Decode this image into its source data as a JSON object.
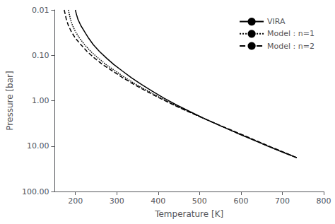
{
  "chart_data": {
    "type": "line",
    "xlabel": "Temperature [K]",
    "ylabel": "Pressure [bar]",
    "log": "y",
    "grid": false,
    "legend": "upper right",
    "xlim": [
      150,
      800
    ],
    "ylim": [
      100.0,
      0.01
    ],
    "xticks": [
      200,
      300,
      400,
      500,
      600,
      700,
      800
    ],
    "yticks": [
      0.01,
      {
        "value": 0.1,
        "label": "0.10"
      },
      {
        "value": 1.0,
        "label": "1.00"
      },
      {
        "value": 10.0,
        "label": "10.00"
      },
      {
        "value": 100.0,
        "label": "100.00"
      }
    ],
    "series": [
      {
        "name": "VIRA",
        "color": "#000000",
        "line_style": "solid",
        "x": [
          200,
          202,
          206,
          213,
          222,
          232,
          243,
          258,
          275,
          293,
          313,
          335,
          360,
          386,
          414,
          445,
          478,
          513,
          550,
          588,
          628,
          668,
          710,
          735
        ],
        "values": [
          0.01,
          0.012,
          0.016,
          0.022,
          0.03,
          0.042,
          0.058,
          0.082,
          0.115,
          0.16,
          0.22,
          0.31,
          0.44,
          0.62,
          0.88,
          1.25,
          1.76,
          2.5,
          3.55,
          5.05,
          7.2,
          10.3,
          14.7,
          18.0
        ]
      },
      {
        "name": "Model : n=1",
        "color": "#000000",
        "line_style": "dotted",
        "x": [
          183,
          185,
          188,
          193,
          200,
          210,
          222,
          237,
          255,
          274,
          296,
          320,
          347,
          376,
          407,
          440,
          475,
          512,
          550,
          589,
          629,
          669,
          711,
          735
        ],
        "values": [
          0.01,
          0.012,
          0.016,
          0.022,
          0.03,
          0.042,
          0.058,
          0.082,
          0.115,
          0.16,
          0.22,
          0.31,
          0.44,
          0.62,
          0.88,
          1.25,
          1.76,
          2.5,
          3.55,
          5.05,
          7.2,
          10.3,
          14.7,
          18.0
        ]
      },
      {
        "name": "Model : n=2",
        "color": "#000000",
        "line_style": "dashed",
        "x": [
          173,
          175,
          178,
          183,
          190,
          200,
          213,
          228,
          246,
          266,
          289,
          314,
          342,
          372,
          404,
          438,
          474,
          512,
          551,
          591,
          631,
          671,
          712,
          735
        ],
        "values": [
          0.01,
          0.012,
          0.016,
          0.022,
          0.03,
          0.042,
          0.058,
          0.082,
          0.115,
          0.16,
          0.22,
          0.31,
          0.44,
          0.62,
          0.88,
          1.25,
          1.76,
          2.5,
          3.55,
          5.05,
          7.2,
          10.3,
          14.7,
          18.0
        ]
      }
    ]
  }
}
